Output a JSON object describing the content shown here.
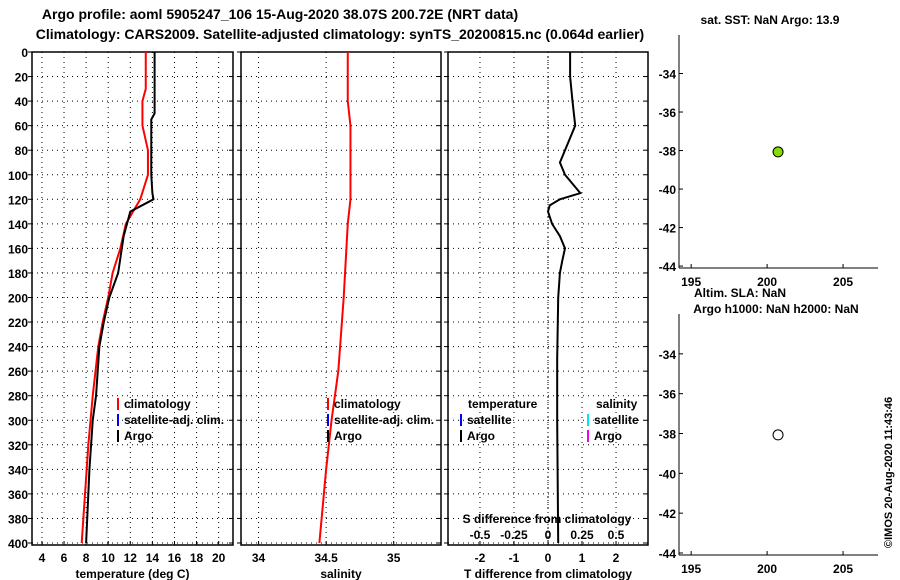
{
  "titles": {
    "line1": "Argo profile: aoml 5905247_106 15-Aug-2020 38.07S 200.72E (NRT data)",
    "line2": "Climatology: CARS2009. Satellite-adjusted climatology: synTS_20200815.nc (0.064d earlier)"
  },
  "credit": "©IMOS 20-Aug-2020 11:43:46",
  "colors": {
    "argo": "#000000",
    "climatology": "#ff0000",
    "satellite": "#0000ff",
    "sal_satellite": "#00e5ee",
    "sal_argo": "#ee00ee",
    "map_point": "#88dd00"
  },
  "chart_data": [
    {
      "type": "line",
      "name": "temperature-profile",
      "xlabel": "temperature (deg C)",
      "ylabel": "",
      "xlim": [
        3.1,
        21.3
      ],
      "ylim": [
        0,
        400
      ],
      "y_reversed": true,
      "grid": true,
      "xticks": [
        4,
        6,
        8,
        10,
        12,
        14,
        16,
        18,
        20
      ],
      "yticks": [
        0,
        20,
        40,
        60,
        80,
        100,
        120,
        140,
        160,
        180,
        200,
        220,
        240,
        260,
        280,
        300,
        320,
        340,
        360,
        380,
        400
      ],
      "legend": [
        "climatology",
        "satellite-adj. clim.",
        "Argo"
      ],
      "series": [
        {
          "name": "climatology",
          "color": "#ff0000",
          "x": [
            13.4,
            13.4,
            13.1,
            13.1,
            13.6,
            13.6,
            12.9,
            11.6,
            11.1,
            10.4,
            10.0,
            9.5,
            9.1,
            8.6,
            8.2,
            7.9,
            7.6
          ],
          "y": [
            0,
            30,
            40,
            60,
            80,
            100,
            120,
            140,
            160,
            180,
            200,
            220,
            240,
            280,
            320,
            360,
            400
          ]
        },
        {
          "name": "Argo",
          "color": "#000000",
          "x": [
            14.2,
            14.2,
            13.9,
            13.9,
            14.0,
            14.1,
            12.0,
            11.4,
            10.9,
            10.1,
            9.6,
            9.2,
            8.9,
            8.6,
            8.3,
            8.0
          ],
          "y": [
            0,
            50,
            55,
            100,
            115,
            120,
            130,
            150,
            180,
            200,
            220,
            240,
            280,
            300,
            340,
            400
          ]
        }
      ]
    },
    {
      "type": "line",
      "name": "salinity-profile",
      "xlabel": "salinity",
      "xlim": [
        33.87,
        35.35
      ],
      "ylim": [
        0,
        400
      ],
      "y_reversed": true,
      "grid": true,
      "xticks": [
        34,
        34.5,
        35
      ],
      "legend": [
        "climatology",
        "satellite-adj. clim.",
        "Argo"
      ],
      "series": [
        {
          "name": "climatology",
          "color": "#ff0000",
          "x": [
            34.66,
            34.66,
            34.68,
            34.68,
            34.66,
            34.63,
            34.59,
            34.54,
            34.5,
            34.45
          ],
          "y": [
            0,
            40,
            60,
            120,
            140,
            200,
            260,
            300,
            340,
            400
          ]
        }
      ]
    },
    {
      "type": "line",
      "name": "difference-profile",
      "xlabel": "T difference from climatology",
      "x2label": "S difference from climatology",
      "xlim": [
        -2.94,
        2.94
      ],
      "ylim": [
        0,
        400
      ],
      "y_reversed": true,
      "grid": true,
      "xticks": [
        -2,
        -1,
        0,
        1,
        2
      ],
      "x2ticks": [
        -0.5,
        -0.25,
        0,
        0.25,
        0.5
      ],
      "legend_temperature": {
        "title": "temperature",
        "items": [
          "satellite",
          "Argo"
        ]
      },
      "legend_salinity": {
        "title": "salinity",
        "items": [
          "satellite",
          "Argo"
        ]
      },
      "series": [
        {
          "name": "T Argo - climatology",
          "color": "#000000",
          "x": [
            0.65,
            0.65,
            0.72,
            0.8,
            0.5,
            0.35,
            0.5,
            0.8,
            0.95,
            0.35,
            0.05,
            0.0,
            0.12,
            0.35,
            0.5,
            0.42,
            0.35,
            0.3,
            0.27,
            0.27,
            0.3
          ],
          "y": [
            0,
            20,
            40,
            60,
            80,
            90,
            100,
            110,
            115,
            120,
            125,
            130,
            140,
            150,
            160,
            170,
            180,
            200,
            250,
            300,
            400
          ]
        }
      ]
    },
    {
      "type": "scatter",
      "name": "map-sst",
      "title": "sat. SST: NaN Argo: 13.9",
      "xlim": [
        194.2,
        207.3
      ],
      "ylim": [
        -44.1,
        -32
      ],
      "xticks": [
        195,
        200,
        205
      ],
      "yticks": [
        -34,
        -36,
        -38,
        -40,
        -42,
        -44
      ],
      "points": [
        {
          "x": 200.72,
          "y": -38.07,
          "color": "#88dd00"
        }
      ]
    },
    {
      "type": "scatter",
      "name": "map-sla",
      "title": "Altim. SLA: NaN",
      "subtitle": "Argo h1000: NaN h2000: NaN",
      "xlim": [
        194.2,
        207.3
      ],
      "ylim": [
        -44.1,
        -32
      ],
      "xticks": [
        195,
        200,
        205
      ],
      "yticks": [
        -34,
        -36,
        -38,
        -40,
        -42,
        -44
      ],
      "points": [
        {
          "x": 200.72,
          "y": -38.07,
          "color": "#ffffff"
        }
      ]
    }
  ]
}
